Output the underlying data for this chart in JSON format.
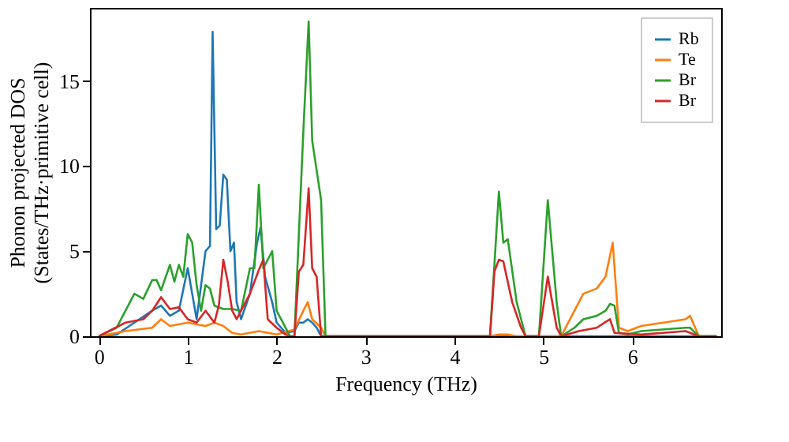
{
  "chart_data": {
    "type": "line",
    "xlabel": "Frequency (THz)",
    "ylabel": "Phonon projected DOS\n(States/THz·primitive cell)",
    "xlim": [
      -0.1,
      7.0
    ],
    "ylim": [
      0,
      19.3
    ],
    "xticks": [
      0,
      1,
      2,
      3,
      4,
      5,
      6
    ],
    "yticks": [
      0,
      5,
      10,
      15
    ],
    "grid": false,
    "legend": "top right",
    "marker": "none",
    "line_style": "solid",
    "series": [
      {
        "name": "Rb",
        "color": "#1f77b4",
        "x": [
          0,
          0.2,
          0.4,
          0.6,
          0.7,
          0.8,
          0.9,
          1.0,
          1.05,
          1.1,
          1.2,
          1.25,
          1.28,
          1.32,
          1.36,
          1.4,
          1.44,
          1.48,
          1.52,
          1.55,
          1.6,
          1.7,
          1.78,
          1.82,
          1.87,
          1.95,
          2.0,
          2.1,
          2.2,
          2.25,
          2.3,
          2.35,
          2.4,
          2.45,
          2.5,
          4.0,
          6.95
        ],
        "values": [
          0,
          0.1,
          0.8,
          1.5,
          1.8,
          1.2,
          1.5,
          4.0,
          2.5,
          1.0,
          5.0,
          5.3,
          17.9,
          6.3,
          6.5,
          9.5,
          9.2,
          5.0,
          5.5,
          2.0,
          1.0,
          2.5,
          5.5,
          6.4,
          3.5,
          2.0,
          0.8,
          0.2,
          0.3,
          0.8,
          0.8,
          1.0,
          0.8,
          0.5,
          0,
          0,
          0
        ]
      },
      {
        "name": "Te",
        "color": "#ff7f0e",
        "x": [
          0,
          0.3,
          0.6,
          0.7,
          0.8,
          1.0,
          1.2,
          1.3,
          1.4,
          1.5,
          1.6,
          1.8,
          2.0,
          2.2,
          2.3,
          2.35,
          2.4,
          2.5,
          2.55,
          4.4,
          4.5,
          4.6,
          4.7,
          5.2,
          5.35,
          5.45,
          5.6,
          5.7,
          5.78,
          5.85,
          5.95,
          6.1,
          6.6,
          6.65,
          6.75,
          6.95
        ],
        "values": [
          0,
          0.3,
          0.5,
          1.0,
          0.6,
          0.8,
          0.6,
          0.8,
          0.6,
          0.2,
          0.1,
          0.3,
          0.1,
          0.4,
          1.5,
          2.0,
          1.0,
          0.5,
          0,
          0,
          0.1,
          0.1,
          0,
          0,
          1.5,
          2.5,
          2.8,
          3.5,
          5.5,
          0.5,
          0.3,
          0.6,
          1.0,
          1.2,
          0,
          0
        ]
      },
      {
        "name": "Br",
        "color": "#2ca02c",
        "x": [
          0,
          0.2,
          0.3,
          0.4,
          0.5,
          0.6,
          0.65,
          0.7,
          0.8,
          0.85,
          0.9,
          0.95,
          1.0,
          1.05,
          1.1,
          1.15,
          1.2,
          1.25,
          1.3,
          1.4,
          1.5,
          1.6,
          1.7,
          1.75,
          1.8,
          1.85,
          1.9,
          1.95,
          2.0,
          2.1,
          2.15,
          2.2,
          2.25,
          2.3,
          2.36,
          2.4,
          2.5,
          2.55,
          4.4,
          4.5,
          4.55,
          4.6,
          4.7,
          4.8,
          4.95,
          5.05,
          5.15,
          5.2,
          5.35,
          5.45,
          5.6,
          5.7,
          5.75,
          5.8,
          5.85,
          5.95,
          6.1,
          6.6,
          6.65,
          6.75,
          6.95
        ],
        "values": [
          0,
          0.5,
          1.5,
          2.5,
          2.2,
          3.3,
          3.3,
          2.7,
          4.2,
          3.2,
          4.2,
          3.5,
          6.0,
          5.5,
          3.0,
          1.5,
          3.0,
          2.8,
          1.8,
          1.6,
          1.6,
          1.5,
          4.0,
          4.0,
          8.9,
          4.0,
          4.5,
          5.0,
          1.5,
          0.5,
          0,
          0,
          6.0,
          12.0,
          18.5,
          11.5,
          8.0,
          0,
          0,
          8.5,
          5.5,
          5.7,
          2.0,
          0,
          0,
          8.0,
          2.0,
          0,
          0.5,
          1.0,
          1.2,
          1.5,
          1.9,
          1.8,
          0.2,
          0.1,
          0.3,
          0.5,
          0.5,
          0,
          0
        ]
      },
      {
        "name": "Br",
        "color": "#d62728",
        "x": [
          0,
          0.3,
          0.5,
          0.6,
          0.7,
          0.8,
          0.9,
          1.0,
          1.1,
          1.2,
          1.3,
          1.35,
          1.4,
          1.45,
          1.5,
          1.55,
          1.7,
          1.8,
          1.85,
          1.9,
          2.0,
          2.1,
          2.15,
          2.2,
          2.25,
          2.3,
          2.36,
          2.4,
          2.45,
          2.5,
          4.4,
          4.45,
          4.5,
          4.55,
          4.65,
          4.75,
          4.8,
          4.95,
          5.05,
          5.15,
          5.2,
          5.4,
          5.6,
          5.75,
          5.8,
          6.1,
          6.6,
          6.75,
          6.95
        ],
        "values": [
          0,
          0.8,
          1.0,
          1.5,
          2.3,
          1.6,
          1.7,
          1.0,
          0.8,
          1.5,
          0.8,
          1.8,
          4.5,
          3.2,
          1.5,
          1.0,
          2.5,
          3.9,
          4.5,
          1.0,
          0.5,
          0.1,
          0,
          0,
          3.8,
          4.2,
          8.7,
          4.0,
          3.5,
          0,
          0,
          3.8,
          4.5,
          4.4,
          2.0,
          0.5,
          0,
          0,
          3.5,
          0.5,
          0,
          0.3,
          0.5,
          1.0,
          0.2,
          0.1,
          0.3,
          0,
          0
        ]
      }
    ]
  }
}
